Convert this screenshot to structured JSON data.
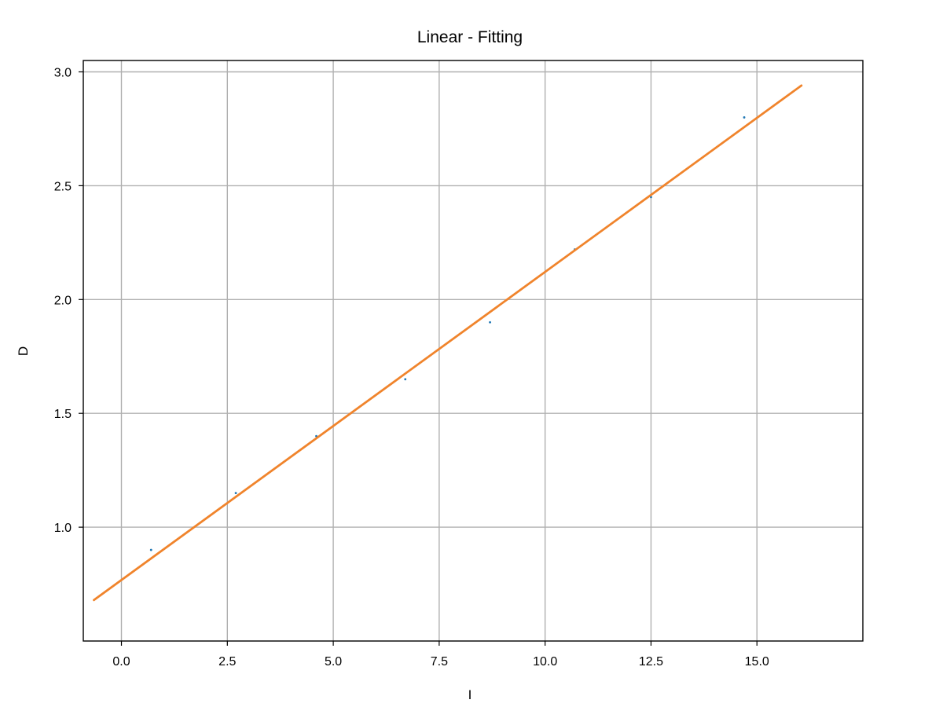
{
  "chart_data": {
    "type": "scatter",
    "title": "Linear - Fitting",
    "xlabel": "I",
    "ylabel": "D",
    "xlim": [
      -0.9,
      17.5
    ],
    "ylim": [
      0.5,
      3.05
    ],
    "xticks": [
      0.0,
      2.5,
      5.0,
      7.5,
      10.0,
      12.5,
      15.0
    ],
    "xtick_labels": [
      "0.0",
      "2.5",
      "5.0",
      "7.5",
      "10.0",
      "12.5",
      "15.0"
    ],
    "yticks": [
      1.0,
      1.5,
      2.0,
      2.5,
      3.0
    ],
    "ytick_labels": [
      "1.0",
      "1.5",
      "2.0",
      "2.5",
      "3.0"
    ],
    "grid": true,
    "series": [
      {
        "type": "scatter",
        "color": "#1f77b4",
        "x": [
          0.7,
          2.7,
          4.6,
          6.7,
          8.7,
          10.7,
          12.5,
          14.7
        ],
        "y": [
          0.9,
          1.15,
          1.4,
          1.65,
          1.9,
          2.22,
          2.45,
          2.8
        ]
      },
      {
        "type": "line",
        "color": "#f0842c",
        "x": [
          -0.65,
          16.05
        ],
        "y": [
          0.68,
          2.94
        ]
      }
    ]
  }
}
